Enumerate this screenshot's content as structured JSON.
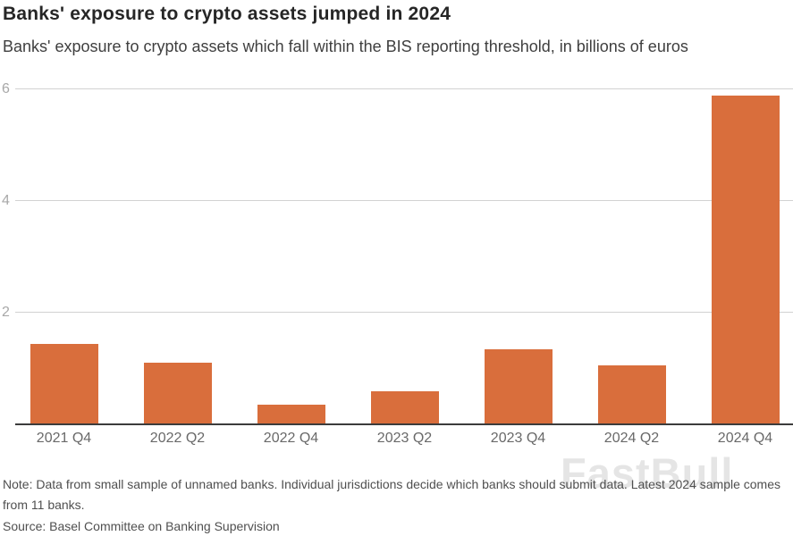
{
  "header": {
    "title": "Banks' exposure to crypto assets jumped in 2024",
    "subtitle": "Banks' exposure to crypto assets which fall within the BIS reporting threshold, in billions of euros"
  },
  "chart_data": {
    "type": "bar",
    "title": "Banks' exposure to crypto assets jumped in 2024",
    "subtitle": "Banks' exposure to crypto assets which fall within the BIS reporting threshold, in billions of euros",
    "categories": [
      "2021 Q4",
      "2022 Q2",
      "2022 Q4",
      "2023 Q2",
      "2023 Q4",
      "2024 Q2",
      "2024 Q4"
    ],
    "values": [
      1.45,
      1.1,
      0.35,
      0.6,
      1.35,
      1.05,
      5.9
    ],
    "xlabel": "",
    "ylabel": "billions of euros",
    "ylim": [
      0,
      6.2
    ],
    "yticks": [
      2,
      4,
      6
    ],
    "grid": "horizontal",
    "legend": "none",
    "bar_color": "#d96e3c"
  },
  "footer": {
    "note": "Note: Data from small sample of unnamed banks. Individual jurisdictions decide which banks should submit data. Latest 2024 sample comes from 11 banks.",
    "source": "Source: Basel Committee on Banking Supervision"
  },
  "watermark": {
    "text": "FastBull"
  },
  "colors": {
    "bar": "#d96e3c",
    "gridline": "#d2d2d2",
    "axis-line": "#3c3c3c",
    "tick-label": "#a8a8a8",
    "category-label": "#696969",
    "note-text": "#4f4f4f",
    "title-text": "#262626",
    "subtitle-text": "#3f3f3f",
    "watermark": "#c2c2c2"
  }
}
